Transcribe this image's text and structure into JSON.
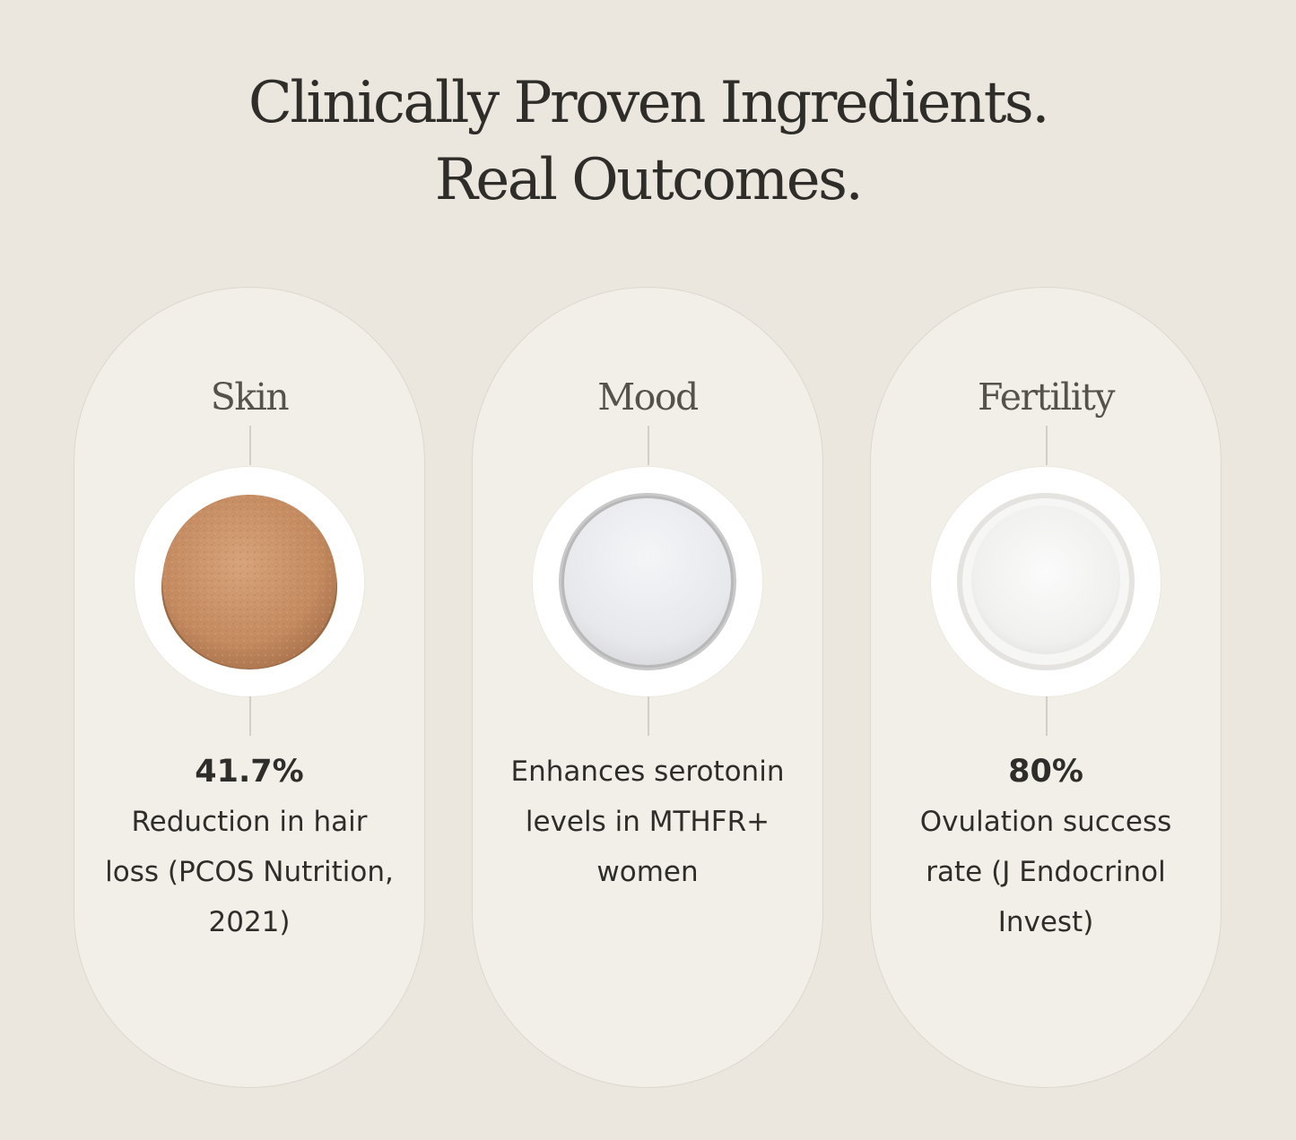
{
  "headline": {
    "line1": "Clinically Proven Ingredients.",
    "line2": "Real Outcomes."
  },
  "cards": [
    {
      "title": "Skin",
      "stat": "41.7%",
      "description": "Reduction in hair loss (PCOS Nutrition, 2021)",
      "image": "brown-tablet"
    },
    {
      "title": "Mood",
      "stat": "",
      "description": "Enhances serotonin levels in MTHFR+ women",
      "image": "white-powder-dish"
    },
    {
      "title": "Fertility",
      "stat": "80%",
      "description": "Ovulation success rate (J Endocrinol Invest)",
      "image": "white-powder-bowl"
    }
  ],
  "colors": {
    "background": "#ebe7de",
    "card": "#f2efe9",
    "text": "#2f2d2a",
    "title": "#55524d",
    "connector": "#d3cfc6"
  }
}
